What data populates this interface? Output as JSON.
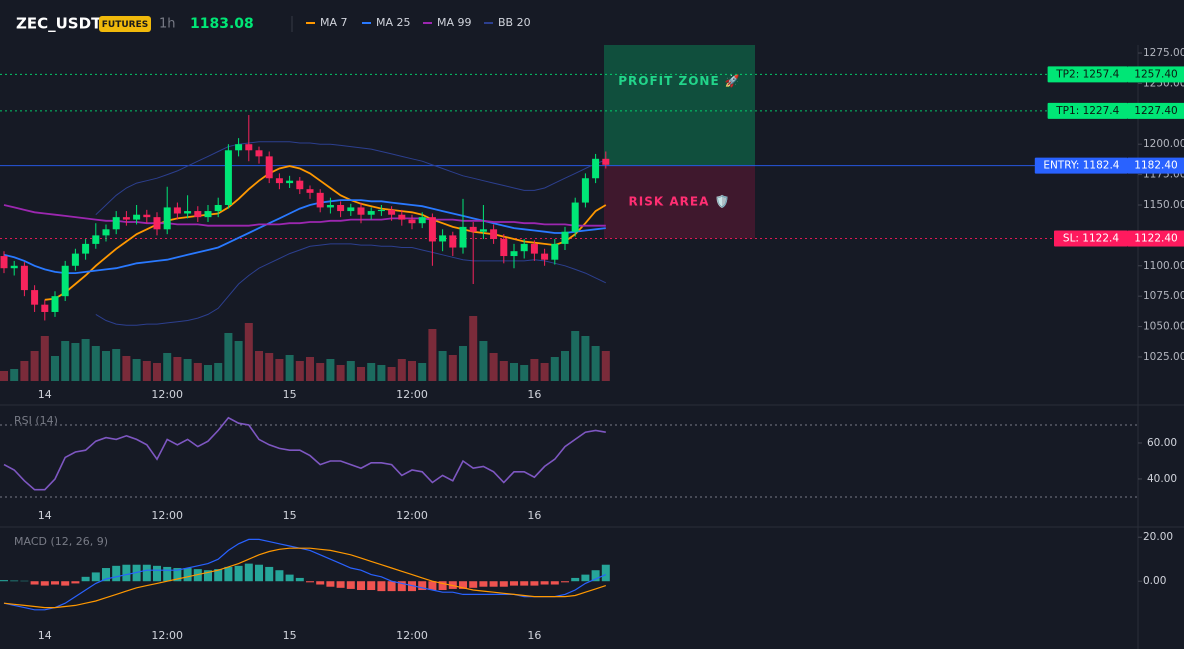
{
  "chart_data": {
    "type": "candlestick",
    "title": "ZEC_USDT",
    "badge": "FUTURES",
    "interval": "1h",
    "last_price": 1183.08,
    "up_color": "#00e676",
    "down_color": "#f7245d",
    "volume_up_color": "#1c6b5f",
    "volume_down_color": "#7a2b3a",
    "categories": [
      null,
      null,
      null,
      null,
      "14",
      null,
      null,
      null,
      null,
      null,
      null,
      null,
      null,
      null,
      null,
      null,
      "12:00",
      null,
      null,
      null,
      null,
      null,
      null,
      null,
      null,
      null,
      null,
      null,
      "15",
      null,
      null,
      null,
      null,
      null,
      null,
      null,
      null,
      null,
      null,
      null,
      "12:00",
      null,
      null,
      null,
      null,
      null,
      null,
      null,
      null,
      null,
      null,
      null,
      "16",
      null,
      null,
      null,
      null,
      null,
      null,
      null
    ],
    "open": [
      1108,
      1098,
      1100,
      1080,
      1068,
      1062,
      1075,
      1100,
      1110,
      1118,
      1125,
      1130,
      1140,
      1138,
      1142,
      1140,
      1130,
      1148,
      1143,
      1145,
      1140,
      1145,
      1150,
      1195,
      1200,
      1195,
      1190,
      1172,
      1168,
      1170,
      1163,
      1160,
      1148,
      1150,
      1145,
      1148,
      1142,
      1145,
      1146,
      1142,
      1138,
      1135,
      1140,
      1120,
      1125,
      1115,
      1132,
      1128,
      1130,
      1122,
      1108,
      1112,
      1118,
      1110,
      1105,
      1118,
      1128,
      1152,
      1172,
      1188
    ],
    "high": [
      1112,
      1104,
      1103,
      1084,
      1072,
      1079,
      1104,
      1114,
      1122,
      1135,
      1134,
      1145,
      1145,
      1150,
      1146,
      1144,
      1165,
      1152,
      1158,
      1149,
      1150,
      1156,
      1200,
      1205,
      1224,
      1198,
      1194,
      1176,
      1174,
      1173,
      1166,
      1163,
      1156,
      1153,
      1151,
      1152,
      1148,
      1150,
      1149,
      1146,
      1142,
      1144,
      1143,
      1130,
      1128,
      1155,
      1136,
      1150,
      1134,
      1126,
      1118,
      1122,
      1121,
      1114,
      1122,
      1132,
      1156,
      1176,
      1192,
      1194
    ],
    "low": [
      1094,
      1092,
      1075,
      1062,
      1055,
      1058,
      1071,
      1096,
      1105,
      1114,
      1120,
      1126,
      1133,
      1134,
      1135,
      1125,
      1126,
      1138,
      1139,
      1136,
      1136,
      1140,
      1147,
      1190,
      1186,
      1184,
      1168,
      1163,
      1164,
      1159,
      1155,
      1144,
      1143,
      1140,
      1141,
      1135,
      1138,
      1141,
      1137,
      1133,
      1130,
      1131,
      1100,
      1112,
      1108,
      1110,
      1085,
      1122,
      1118,
      1102,
      1098,
      1106,
      1104,
      1100,
      1101,
      1113,
      1124,
      1148,
      1168,
      1180
    ],
    "close": [
      1098,
      1100,
      1080,
      1068,
      1062,
      1075,
      1100,
      1110,
      1118,
      1125,
      1130,
      1140,
      1138,
      1142,
      1140,
      1130,
      1148,
      1143,
      1145,
      1140,
      1145,
      1150,
      1195,
      1200,
      1195,
      1190,
      1172,
      1168,
      1170,
      1163,
      1160,
      1148,
      1150,
      1145,
      1148,
      1142,
      1145,
      1146,
      1142,
      1138,
      1135,
      1140,
      1120,
      1125,
      1115,
      1132,
      1128,
      1130,
      1122,
      1108,
      1112,
      1118,
      1110,
      1105,
      1118,
      1128,
      1152,
      1172,
      1188,
      1183.08
    ],
    "volume": [
      10,
      12,
      20,
      30,
      45,
      25,
      40,
      38,
      42,
      35,
      30,
      32,
      25,
      22,
      20,
      18,
      28,
      24,
      22,
      18,
      16,
      18,
      48,
      40,
      58,
      30,
      28,
      22,
      26,
      20,
      24,
      18,
      22,
      16,
      20,
      14,
      18,
      16,
      14,
      22,
      20,
      18,
      52,
      30,
      26,
      35,
      65,
      40,
      28,
      20,
      18,
      16,
      22,
      18,
      24,
      30,
      50,
      45,
      35,
      30
    ],
    "ma": [
      {
        "name": "MA 7",
        "color": "#ff9800",
        "values": [
          null,
          null,
          null,
          null,
          1072,
          1073,
          1078,
          1085,
          1092,
          1100,
          1107,
          1114,
          1120,
          1126,
          1130,
          1134,
          1137,
          1139,
          1140,
          1141,
          1142,
          1143,
          1148,
          1155,
          1163,
          1170,
          1176,
          1180,
          1182,
          1180,
          1176,
          1170,
          1164,
          1158,
          1154,
          1151,
          1149,
          1147,
          1146,
          1145,
          1144,
          1142,
          1138,
          1135,
          1132,
          1130,
          1128,
          1127,
          1126,
          1124,
          1122,
          1120,
          1119,
          1118,
          1117,
          1120,
          1126,
          1135,
          1145,
          1150
        ]
      },
      {
        "name": "MA 25",
        "color": "#2979ff",
        "values": [
          1109,
          1107,
          1104,
          1100,
          1097,
          1095,
          1094,
          1094,
          1095,
          1096,
          1097,
          1098,
          1100,
          1102,
          1103,
          1104,
          1105,
          1107,
          1109,
          1111,
          1113,
          1115,
          1119,
          1123,
          1127,
          1131,
          1135,
          1139,
          1143,
          1147,
          1150,
          1152,
          1153,
          1154,
          1154,
          1154,
          1153,
          1153,
          1152,
          1151,
          1150,
          1149,
          1147,
          1145,
          1143,
          1141,
          1139,
          1137,
          1135,
          1133,
          1131,
          1130,
          1129,
          1128,
          1127,
          1127,
          1128,
          1129,
          1130,
          1131
        ]
      },
      {
        "name": "MA 99",
        "color": "#9c27b0",
        "values": [
          1150,
          1148,
          1146,
          1144,
          1143,
          1142,
          1141,
          1140,
          1139,
          1138,
          1137,
          1137,
          1136,
          1136,
          1135,
          1135,
          1135,
          1134,
          1134,
          1134,
          1133,
          1133,
          1133,
          1133,
          1133,
          1134,
          1134,
          1134,
          1135,
          1135,
          1136,
          1136,
          1137,
          1137,
          1138,
          1138,
          1138,
          1138,
          1139,
          1139,
          1139,
          1139,
          1138,
          1138,
          1138,
          1137,
          1137,
          1137,
          1136,
          1136,
          1136,
          1135,
          1135,
          1134,
          1134,
          1134,
          1133,
          1133,
          1133,
          1133
        ]
      }
    ],
    "bb": {
      "name": "BB 20",
      "color": "#2c3f8f",
      "upper": [
        null,
        null,
        null,
        null,
        null,
        null,
        null,
        null,
        null,
        1142,
        1150,
        1158,
        1164,
        1168,
        1170,
        1172,
        1175,
        1178,
        1182,
        1186,
        1190,
        1194,
        1198,
        1200,
        1201,
        1202,
        1202,
        1202,
        1202,
        1201,
        1201,
        1200,
        1200,
        1199,
        1198,
        1197,
        1196,
        1194,
        1192,
        1190,
        1188,
        1186,
        1183,
        1180,
        1177,
        1174,
        1172,
        1170,
        1168,
        1166,
        1164,
        1162,
        1162,
        1164,
        1168,
        1172,
        1176,
        1180,
        1184,
        1187
      ],
      "lower": [
        null,
        null,
        null,
        null,
        null,
        null,
        null,
        null,
        null,
        1060,
        1055,
        1052,
        1051,
        1051,
        1052,
        1052,
        1053,
        1054,
        1055,
        1057,
        1060,
        1065,
        1075,
        1085,
        1092,
        1098,
        1102,
        1106,
        1110,
        1113,
        1116,
        1117,
        1118,
        1118,
        1118,
        1117,
        1117,
        1116,
        1116,
        1115,
        1115,
        1113,
        1111,
        1109,
        1107,
        1105,
        1104,
        1104,
        1104,
        1104,
        1104,
        1104,
        1105,
        1104,
        1102,
        1100,
        1097,
        1094,
        1090,
        1086
      ]
    },
    "ylim": [
      1004.4,
      1281.6
    ],
    "yticks": [
      {
        "value": 1025,
        "label": "1025.00"
      },
      {
        "value": 1050,
        "label": "1050.00"
      },
      {
        "value": 1075,
        "label": "1075.00"
      },
      {
        "value": 1100,
        "label": "1100.00"
      },
      {
        "value": 1125,
        "label": "1125.00"
      },
      {
        "value": 1150,
        "label": "1150.00"
      },
      {
        "value": 1175,
        "label": "1175.00"
      },
      {
        "value": 1200,
        "label": "1200.00"
      },
      {
        "value": 1225,
        "label": "1225.00"
      },
      {
        "value": 1250,
        "label": "1250.00"
      },
      {
        "value": 1275,
        "label": "1275.00"
      }
    ],
    "levels": [
      {
        "label": "TP2: 1257.4",
        "value": 1257.4,
        "axis_label": "1257.40",
        "color": "#00e676",
        "text_color": "#0b1a12",
        "dashed": true
      },
      {
        "label": "TP1: 1227.4",
        "value": 1227.4,
        "axis_label": "1227.40",
        "color": "#00e676",
        "text_color": "#0b1a12",
        "dashed": true
      },
      {
        "label": "ENTRY: 1182.4",
        "value": 1182.4,
        "axis_label": "1182.40",
        "color": "#2962ff",
        "text_color": "#ffffff",
        "dashed": false
      },
      {
        "label": "SL: 1122.4",
        "value": 1122.4,
        "axis_label": "1122.40",
        "color": "#ff1a5e",
        "text_color": "#ffffff",
        "dashed": true
      }
    ],
    "zones": [
      {
        "label": "PROFIT ZONE 🚀",
        "from": 1182.4,
        "to": 1281.6,
        "color": "#0f5c44",
        "text_color": "#22d48a"
      },
      {
        "label": "RISK AREA 🛡️",
        "from": 1182.4,
        "to": 1122.4,
        "color": "#4a1830",
        "text_color": "#ff2e72"
      }
    ],
    "rsi": {
      "label": "RSI (14)",
      "color": "#7e57c2",
      "values": [
        48,
        45,
        39,
        34,
        34,
        40,
        52,
        55,
        56,
        61,
        63,
        62,
        64,
        62,
        59,
        51,
        62,
        59,
        62,
        58,
        61,
        67,
        74,
        71,
        70,
        62,
        59,
        57,
        56,
        56,
        53,
        48,
        50,
        50,
        48,
        46,
        49,
        49,
        48,
        42,
        45,
        44,
        38,
        42,
        39,
        50,
        46,
        47,
        44,
        38,
        44,
        44,
        41,
        47,
        51,
        58,
        62,
        66,
        67,
        66
      ],
      "ylim": [
        14.4,
        80
      ],
      "yticks": [
        {
          "value": 40,
          "label": "40.00"
        },
        {
          "value": 60,
          "label": "60.00"
        }
      ],
      "bands": [
        30,
        70
      ]
    },
    "macd": {
      "label": "MACD (12, 26, 9)",
      "macd_color": "#2962ff",
      "signal_color": "#ff9800",
      "up_color": "#26a69a",
      "down_color": "#ef5350",
      "macd": [
        -10,
        -11,
        -12,
        -13,
        -13,
        -12,
        -10,
        -7,
        -4,
        -1,
        1,
        2,
        3,
        4,
        5,
        5,
        5,
        5,
        6,
        7,
        8,
        10,
        14,
        17,
        19,
        19,
        18,
        17,
        16,
        15,
        14,
        12,
        10,
        8,
        6,
        5,
        3,
        2,
        0,
        -1,
        -2,
        -3,
        -4,
        -5,
        -5,
        -6,
        -6,
        -6,
        -6,
        -6,
        -6,
        -7,
        -7,
        -7,
        -7,
        -6,
        -4,
        -1,
        1,
        3
      ],
      "signal": [
        -10,
        -10.5,
        -11,
        -11.5,
        -12,
        -12,
        -11.5,
        -11,
        -10,
        -9,
        -7.5,
        -6,
        -4.5,
        -3,
        -2,
        -1,
        0,
        1,
        2,
        3,
        4,
        5,
        6.5,
        8,
        10,
        12,
        13.5,
        14.5,
        15,
        15,
        15,
        14.5,
        14,
        13,
        12,
        10.5,
        9,
        7.5,
        6,
        4.5,
        3,
        1.5,
        0,
        -1,
        -2,
        -3,
        -4,
        -4.5,
        -5,
        -5.5,
        -6,
        -6.5,
        -7,
        -7,
        -7,
        -7,
        -6.5,
        -5,
        -3.5,
        -2
      ],
      "histogram": [
        0.5,
        0.3,
        0.2,
        -1.5,
        -2,
        -1.5,
        -2,
        -1,
        2,
        4,
        6,
        7,
        7.5,
        7.5,
        7.5,
        7,
        6.5,
        6,
        6,
        5.5,
        5,
        5.5,
        6.5,
        7,
        8,
        7.5,
        6.5,
        5,
        3,
        1.5,
        -0.5,
        -1.5,
        -2.5,
        -3,
        -3.5,
        -4,
        -4,
        -4.5,
        -4.5,
        -4.5,
        -4.5,
        -4,
        -4,
        -4,
        -3.5,
        -3.5,
        -3,
        -2.5,
        -2.5,
        -2.5,
        -2,
        -2,
        -2,
        -1.5,
        -1.5,
        -0.5,
        1.5,
        3,
        5,
        7.5
      ],
      "ylim": [
        -29,
        24.2
      ],
      "yticks": [
        {
          "value": 0,
          "label": "0.00"
        },
        {
          "value": 20,
          "label": "20.00"
        }
      ]
    }
  }
}
